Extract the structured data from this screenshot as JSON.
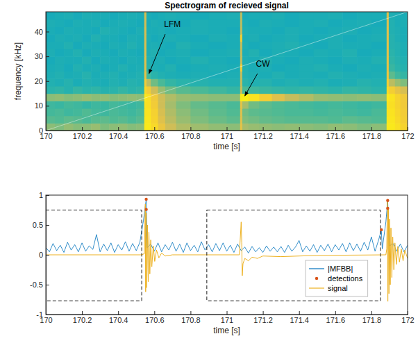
{
  "chart_data": [
    {
      "type": "heatmap",
      "title": "Spectrogram of recieved signal",
      "x_label": "time [s]",
      "y_label": "frequency [kHz]",
      "xlim": [
        170,
        172
      ],
      "ylim": [
        0,
        48
      ],
      "xticks": [
        170,
        170.2,
        170.4,
        170.6,
        170.8,
        171,
        171.2,
        171.4,
        171.6,
        171.8,
        172
      ],
      "yticks": [
        0,
        10,
        20,
        30,
        40
      ],
      "time_bins": [
        170,
        170.05,
        170.1,
        170.15,
        170.2,
        170.25,
        170.3,
        170.35,
        170.4,
        170.45,
        170.5,
        170.544,
        170.556,
        170.58,
        170.62,
        170.66,
        170.72,
        170.8,
        170.9,
        171,
        171.074,
        171.086,
        171.12,
        171.18,
        171.25,
        171.32,
        171.4,
        171.48,
        171.56,
        171.64,
        171.72,
        171.8,
        171.884,
        171.896,
        171.93,
        171.96,
        172
      ],
      "freq_bins": [
        0,
        3,
        6,
        9,
        12,
        15,
        18,
        21,
        24,
        27,
        30,
        33,
        36,
        39,
        42,
        45,
        48
      ],
      "zlim": [
        0,
        1
      ],
      "cells": [
        [
          0.62,
          0.6,
          0.63,
          0.61,
          0.62,
          0.64,
          0.6,
          0.62,
          0.63,
          0.61,
          0.62,
          0.95,
          0.95,
          0.9,
          0.82,
          0.74,
          0.68,
          0.65,
          0.63,
          0.62,
          0.8,
          0.66,
          0.64,
          0.63,
          0.62,
          0.63,
          0.62,
          0.61,
          0.63,
          0.62,
          0.6,
          0.62,
          0.95,
          0.95,
          0.92,
          0.88
        ],
        [
          0.54,
          0.53,
          0.55,
          0.54,
          0.52,
          0.54,
          0.55,
          0.53,
          0.54,
          0.52,
          0.54,
          0.94,
          0.94,
          0.88,
          0.78,
          0.7,
          0.64,
          0.6,
          0.57,
          0.55,
          0.78,
          0.6,
          0.58,
          0.56,
          0.55,
          0.54,
          0.54,
          0.54,
          0.53,
          0.55,
          0.54,
          0.53,
          0.94,
          0.94,
          0.9,
          0.86
        ],
        [
          0.51,
          0.52,
          0.5,
          0.51,
          0.53,
          0.51,
          0.5,
          0.52,
          0.51,
          0.5,
          0.52,
          0.93,
          0.93,
          0.87,
          0.76,
          0.68,
          0.62,
          0.58,
          0.55,
          0.53,
          0.78,
          0.58,
          0.55,
          0.54,
          0.53,
          0.52,
          0.52,
          0.51,
          0.52,
          0.51,
          0.5,
          0.52,
          0.93,
          0.93,
          0.89,
          0.85
        ],
        [
          0.5,
          0.49,
          0.51,
          0.5,
          0.48,
          0.5,
          0.49,
          0.51,
          0.5,
          0.49,
          0.5,
          0.93,
          0.92,
          0.85,
          0.74,
          0.66,
          0.6,
          0.56,
          0.54,
          0.52,
          0.8,
          0.66,
          0.58,
          0.55,
          0.53,
          0.52,
          0.51,
          0.5,
          0.51,
          0.5,
          0.49,
          0.5,
          0.93,
          0.92,
          0.88,
          0.84
        ],
        [
          0.62,
          0.63,
          0.61,
          0.62,
          0.64,
          0.62,
          0.63,
          0.61,
          0.62,
          0.63,
          0.62,
          0.95,
          0.92,
          0.84,
          0.74,
          0.68,
          0.64,
          0.63,
          0.62,
          0.62,
          0.96,
          0.97,
          0.93,
          0.86,
          0.78,
          0.72,
          0.68,
          0.64,
          0.63,
          0.62,
          0.63,
          0.62,
          0.95,
          0.93,
          0.88,
          0.84
        ],
        [
          0.46,
          0.47,
          0.45,
          0.48,
          0.46,
          0.47,
          0.45,
          0.46,
          0.48,
          0.46,
          0.47,
          0.9,
          0.85,
          0.74,
          0.64,
          0.58,
          0.54,
          0.52,
          0.5,
          0.48,
          0.74,
          0.52,
          0.5,
          0.49,
          0.48,
          0.47,
          0.48,
          0.47,
          0.46,
          0.48,
          0.47,
          0.46,
          0.9,
          0.86,
          0.8,
          0.76
        ],
        [
          0.44,
          0.43,
          0.45,
          0.42,
          0.44,
          0.43,
          0.42,
          0.44,
          0.43,
          0.45,
          0.44,
          0.85,
          0.7,
          0.58,
          0.52,
          0.48,
          0.46,
          0.45,
          0.44,
          0.44,
          0.72,
          0.46,
          0.44,
          0.45,
          0.43,
          0.44,
          0.43,
          0.44,
          0.42,
          0.43,
          0.45,
          0.44,
          0.86,
          0.7,
          0.64,
          0.6
        ],
        [
          0.43,
          0.44,
          0.42,
          0.43,
          0.45,
          0.42,
          0.43,
          0.44,
          0.42,
          0.43,
          0.44,
          0.8,
          0.5,
          0.46,
          0.44,
          0.43,
          0.42,
          0.43,
          0.42,
          0.43,
          0.72,
          0.44,
          0.43,
          0.42,
          0.44,
          0.42,
          0.43,
          0.42,
          0.44,
          0.43,
          0.42,
          0.43,
          0.82,
          0.55,
          0.5,
          0.48
        ],
        [
          0.42,
          0.43,
          0.41,
          0.44,
          0.42,
          0.43,
          0.41,
          0.42,
          0.44,
          0.42,
          0.43,
          0.78,
          0.45,
          0.43,
          0.42,
          0.44,
          0.41,
          0.42,
          0.43,
          0.42,
          0.85,
          0.44,
          0.42,
          0.43,
          0.41,
          0.42,
          0.43,
          0.44,
          0.42,
          0.41,
          0.43,
          0.42,
          0.8,
          0.49,
          0.46,
          0.45
        ],
        [
          0.41,
          0.43,
          0.42,
          0.42,
          0.44,
          0.41,
          0.43,
          0.42,
          0.41,
          0.43,
          0.42,
          0.78,
          0.44,
          0.42,
          0.43,
          0.41,
          0.42,
          0.44,
          0.42,
          0.41,
          0.72,
          0.43,
          0.42,
          0.44,
          0.42,
          0.41,
          0.43,
          0.42,
          0.41,
          0.43,
          0.42,
          0.44,
          0.8,
          0.47,
          0.45,
          0.44
        ],
        [
          0.43,
          0.41,
          0.42,
          0.44,
          0.41,
          0.43,
          0.42,
          0.41,
          0.43,
          0.42,
          0.41,
          0.77,
          0.43,
          0.44,
          0.41,
          0.42,
          0.43,
          0.41,
          0.42,
          0.43,
          0.71,
          0.42,
          0.44,
          0.41,
          0.43,
          0.42,
          0.41,
          0.43,
          0.42,
          0.44,
          0.41,
          0.42,
          0.79,
          0.46,
          0.44,
          0.43
        ],
        [
          0.42,
          0.42,
          0.44,
          0.41,
          0.43,
          0.42,
          0.41,
          0.43,
          0.42,
          0.44,
          0.42,
          0.77,
          0.42,
          0.43,
          0.42,
          0.41,
          0.44,
          0.42,
          0.41,
          0.42,
          0.72,
          0.43,
          0.41,
          0.42,
          0.43,
          0.44,
          0.42,
          0.41,
          0.43,
          0.42,
          0.42,
          0.41,
          0.79,
          0.45,
          0.44,
          0.43
        ],
        [
          0.41,
          0.43,
          0.42,
          0.43,
          0.41,
          0.44,
          0.42,
          0.42,
          0.41,
          0.43,
          0.42,
          0.76,
          0.43,
          0.41,
          0.42,
          0.43,
          0.42,
          0.41,
          0.43,
          0.42,
          0.86,
          0.42,
          0.43,
          0.41,
          0.42,
          0.43,
          0.41,
          0.42,
          0.43,
          0.41,
          0.42,
          0.43,
          0.78,
          0.45,
          0.43,
          0.42
        ],
        [
          0.42,
          0.41,
          0.43,
          0.42,
          0.42,
          0.41,
          0.44,
          0.43,
          0.42,
          0.41,
          0.43,
          0.76,
          0.42,
          0.42,
          0.43,
          0.41,
          0.42,
          0.43,
          0.42,
          0.41,
          0.71,
          0.43,
          0.42,
          0.42,
          0.41,
          0.43,
          0.42,
          0.41,
          0.42,
          0.43,
          0.41,
          0.42,
          0.78,
          0.44,
          0.43,
          0.42
        ],
        [
          0.43,
          0.42,
          0.41,
          0.43,
          0.42,
          0.43,
          0.41,
          0.42,
          0.43,
          0.42,
          0.41,
          0.75,
          0.41,
          0.43,
          0.42,
          0.42,
          0.41,
          0.43,
          0.42,
          0.42,
          0.7,
          0.42,
          0.41,
          0.43,
          0.42,
          0.41,
          0.42,
          0.43,
          0.41,
          0.42,
          0.43,
          0.41,
          0.77,
          0.44,
          0.42,
          0.43
        ],
        [
          0.41,
          0.42,
          0.43,
          0.41,
          0.43,
          0.42,
          0.42,
          0.41,
          0.42,
          0.43,
          0.42,
          0.75,
          0.42,
          0.41,
          0.42,
          0.43,
          0.42,
          0.41,
          0.42,
          0.43,
          0.7,
          0.41,
          0.42,
          0.42,
          0.43,
          0.41,
          0.42,
          0.42,
          0.43,
          0.41,
          0.42,
          0.42,
          0.77,
          0.43,
          0.42,
          0.42
        ]
      ],
      "trace": {
        "x": [
          170,
          172
        ],
        "values": [
          0,
          48
        ],
        "color": "#ffffff"
      },
      "annotations": [
        {
          "text": "LFM",
          "x": 170.7,
          "y": 43,
          "tail": [
            170.66,
            39
          ],
          "head": [
            170.57,
            23
          ]
        },
        {
          "text": "CW",
          "x": 171.2,
          "y": 27,
          "tail": [
            171.17,
            23
          ],
          "head": [
            171.1,
            14
          ]
        }
      ]
    },
    {
      "type": "line",
      "x_label": "time [s]",
      "xlim": [
        170,
        172
      ],
      "ylim": [
        -1,
        1
      ],
      "xticks": [
        170,
        170.2,
        170.4,
        170.6,
        170.8,
        171,
        171.2,
        171.4,
        171.6,
        171.8,
        172
      ],
      "yticks": [
        -1,
        -0.5,
        0,
        0.5,
        1
      ],
      "legend": "lower right",
      "windows": [
        {
          "x": [
            170,
            170.53
          ],
          "y": [
            -0.77,
            0.75
          ],
          "line_style": "dashed",
          "color": "#000000"
        },
        {
          "x": [
            170.89,
            171.85
          ],
          "y": [
            -0.77,
            0.75
          ],
          "line_style": "dashed",
          "color": "#000000"
        }
      ],
      "series": [
        {
          "name": "|MFBB|",
          "type": "line",
          "color": "#0072bd",
          "x": [
            170,
            170.02,
            170.04,
            170.06,
            170.08,
            170.1,
            170.12,
            170.14,
            170.16,
            170.18,
            170.2,
            170.22,
            170.24,
            170.26,
            170.28,
            170.3,
            170.32,
            170.34,
            170.36,
            170.38,
            170.4,
            170.42,
            170.44,
            170.46,
            170.48,
            170.5,
            170.52,
            170.54,
            170.555,
            170.56,
            170.58,
            170.6,
            170.62,
            170.64,
            170.66,
            170.68,
            170.7,
            170.72,
            170.74,
            170.76,
            170.78,
            170.8,
            170.82,
            170.84,
            170.86,
            170.88,
            170.9,
            170.92,
            170.94,
            170.96,
            170.98,
            171,
            171.02,
            171.04,
            171.06,
            171.08,
            171.1,
            171.12,
            171.14,
            171.16,
            171.18,
            171.2,
            171.22,
            171.24,
            171.26,
            171.28,
            171.3,
            171.32,
            171.34,
            171.36,
            171.38,
            171.4,
            171.42,
            171.44,
            171.46,
            171.48,
            171.5,
            171.52,
            171.54,
            171.56,
            171.58,
            171.6,
            171.62,
            171.64,
            171.66,
            171.68,
            171.7,
            171.72,
            171.74,
            171.76,
            171.78,
            171.8,
            171.82,
            171.84,
            171.855,
            171.86,
            171.88,
            171.89,
            171.9,
            171.92,
            171.94,
            171.96,
            171.98,
            172
          ],
          "values": [
            0.12,
            0.05,
            0.19,
            0.07,
            0.16,
            0.04,
            0.21,
            0.08,
            0.17,
            0.05,
            0.2,
            0.06,
            0.15,
            0.09,
            0.34,
            0.05,
            0.18,
            0.07,
            0.2,
            0.04,
            0.17,
            0.08,
            0.22,
            0.06,
            0.19,
            0.07,
            0.21,
            0.58,
            0.93,
            0.12,
            0.18,
            0.06,
            0.2,
            0.05,
            0.17,
            0.08,
            0.21,
            0.06,
            0.18,
            0.04,
            0.2,
            0.07,
            0.16,
            0.05,
            0.22,
            0.08,
            0.17,
            0.05,
            0.19,
            0.07,
            0.2,
            0.06,
            0.16,
            0.04,
            0.18,
            0.07,
            0.13,
            0.03,
            0.14,
            0.05,
            0.12,
            0.04,
            0.15,
            0.06,
            0.13,
            0.05,
            0.14,
            0.04,
            0.16,
            0.06,
            0.13,
            0.24,
            0.05,
            0.15,
            0.06,
            0.17,
            0.04,
            0.16,
            0.07,
            0.18,
            0.05,
            0.17,
            0.08,
            0.19,
            0.05,
            0.2,
            0.07,
            0.18,
            0.06,
            0.21,
            0.08,
            0.3,
            0.06,
            0.25,
            0.42,
            0.1,
            0.55,
            0.91,
            0.15,
            0.19,
            0.06,
            0.18,
            0.05,
            0.16
          ]
        },
        {
          "name": "detections",
          "type": "scatter",
          "marker": "dot",
          "color": "#d95319",
          "x": [
            170.555,
            170.555,
            171.855,
            171.89,
            171.89
          ],
          "values": [
            0.93,
            0.76,
            0.42,
            0.91,
            0.78
          ]
        },
        {
          "name": "signal",
          "type": "line",
          "color": "#edb120",
          "x": [
            170,
            170.53,
            170.545,
            170.55,
            170.552,
            170.555,
            170.558,
            170.562,
            170.566,
            170.57,
            170.575,
            170.58,
            170.586,
            170.594,
            170.602,
            170.612,
            170.625,
            170.64,
            170.66,
            170.7,
            171.07,
            171.08,
            171.083,
            171.086,
            171.09,
            171.1,
            171.12,
            171.14,
            171.17,
            171.2,
            171.3,
            171.5,
            171.88,
            171.885,
            171.888,
            171.891,
            171.894,
            171.897,
            171.9,
            171.904,
            171.908,
            171.913,
            171.918,
            171.924,
            171.93,
            171.938,
            171.946,
            171.955,
            171.965,
            171.975,
            171.985,
            172
          ],
          "values": [
            0,
            0,
            0.02,
            0.85,
            -0.62,
            0.7,
            -0.55,
            0.5,
            -0.45,
            0.38,
            -0.32,
            0.25,
            -0.2,
            0.15,
            -0.11,
            0.08,
            -0.05,
            0.03,
            -0.02,
            0,
            0,
            0.55,
            0.2,
            -0.35,
            -0.15,
            -0.06,
            -0.1,
            -0.04,
            -0.06,
            -0.02,
            -0.03,
            -0.01,
            0,
            0.1,
            0.9,
            -0.78,
            0.8,
            -0.65,
            0.6,
            -0.5,
            0.45,
            -0.38,
            0.3,
            -0.25,
            0.2,
            -0.16,
            0.14,
            -0.12,
            0.1,
            -0.1,
            0.08,
            -0.06
          ]
        }
      ]
    }
  ]
}
